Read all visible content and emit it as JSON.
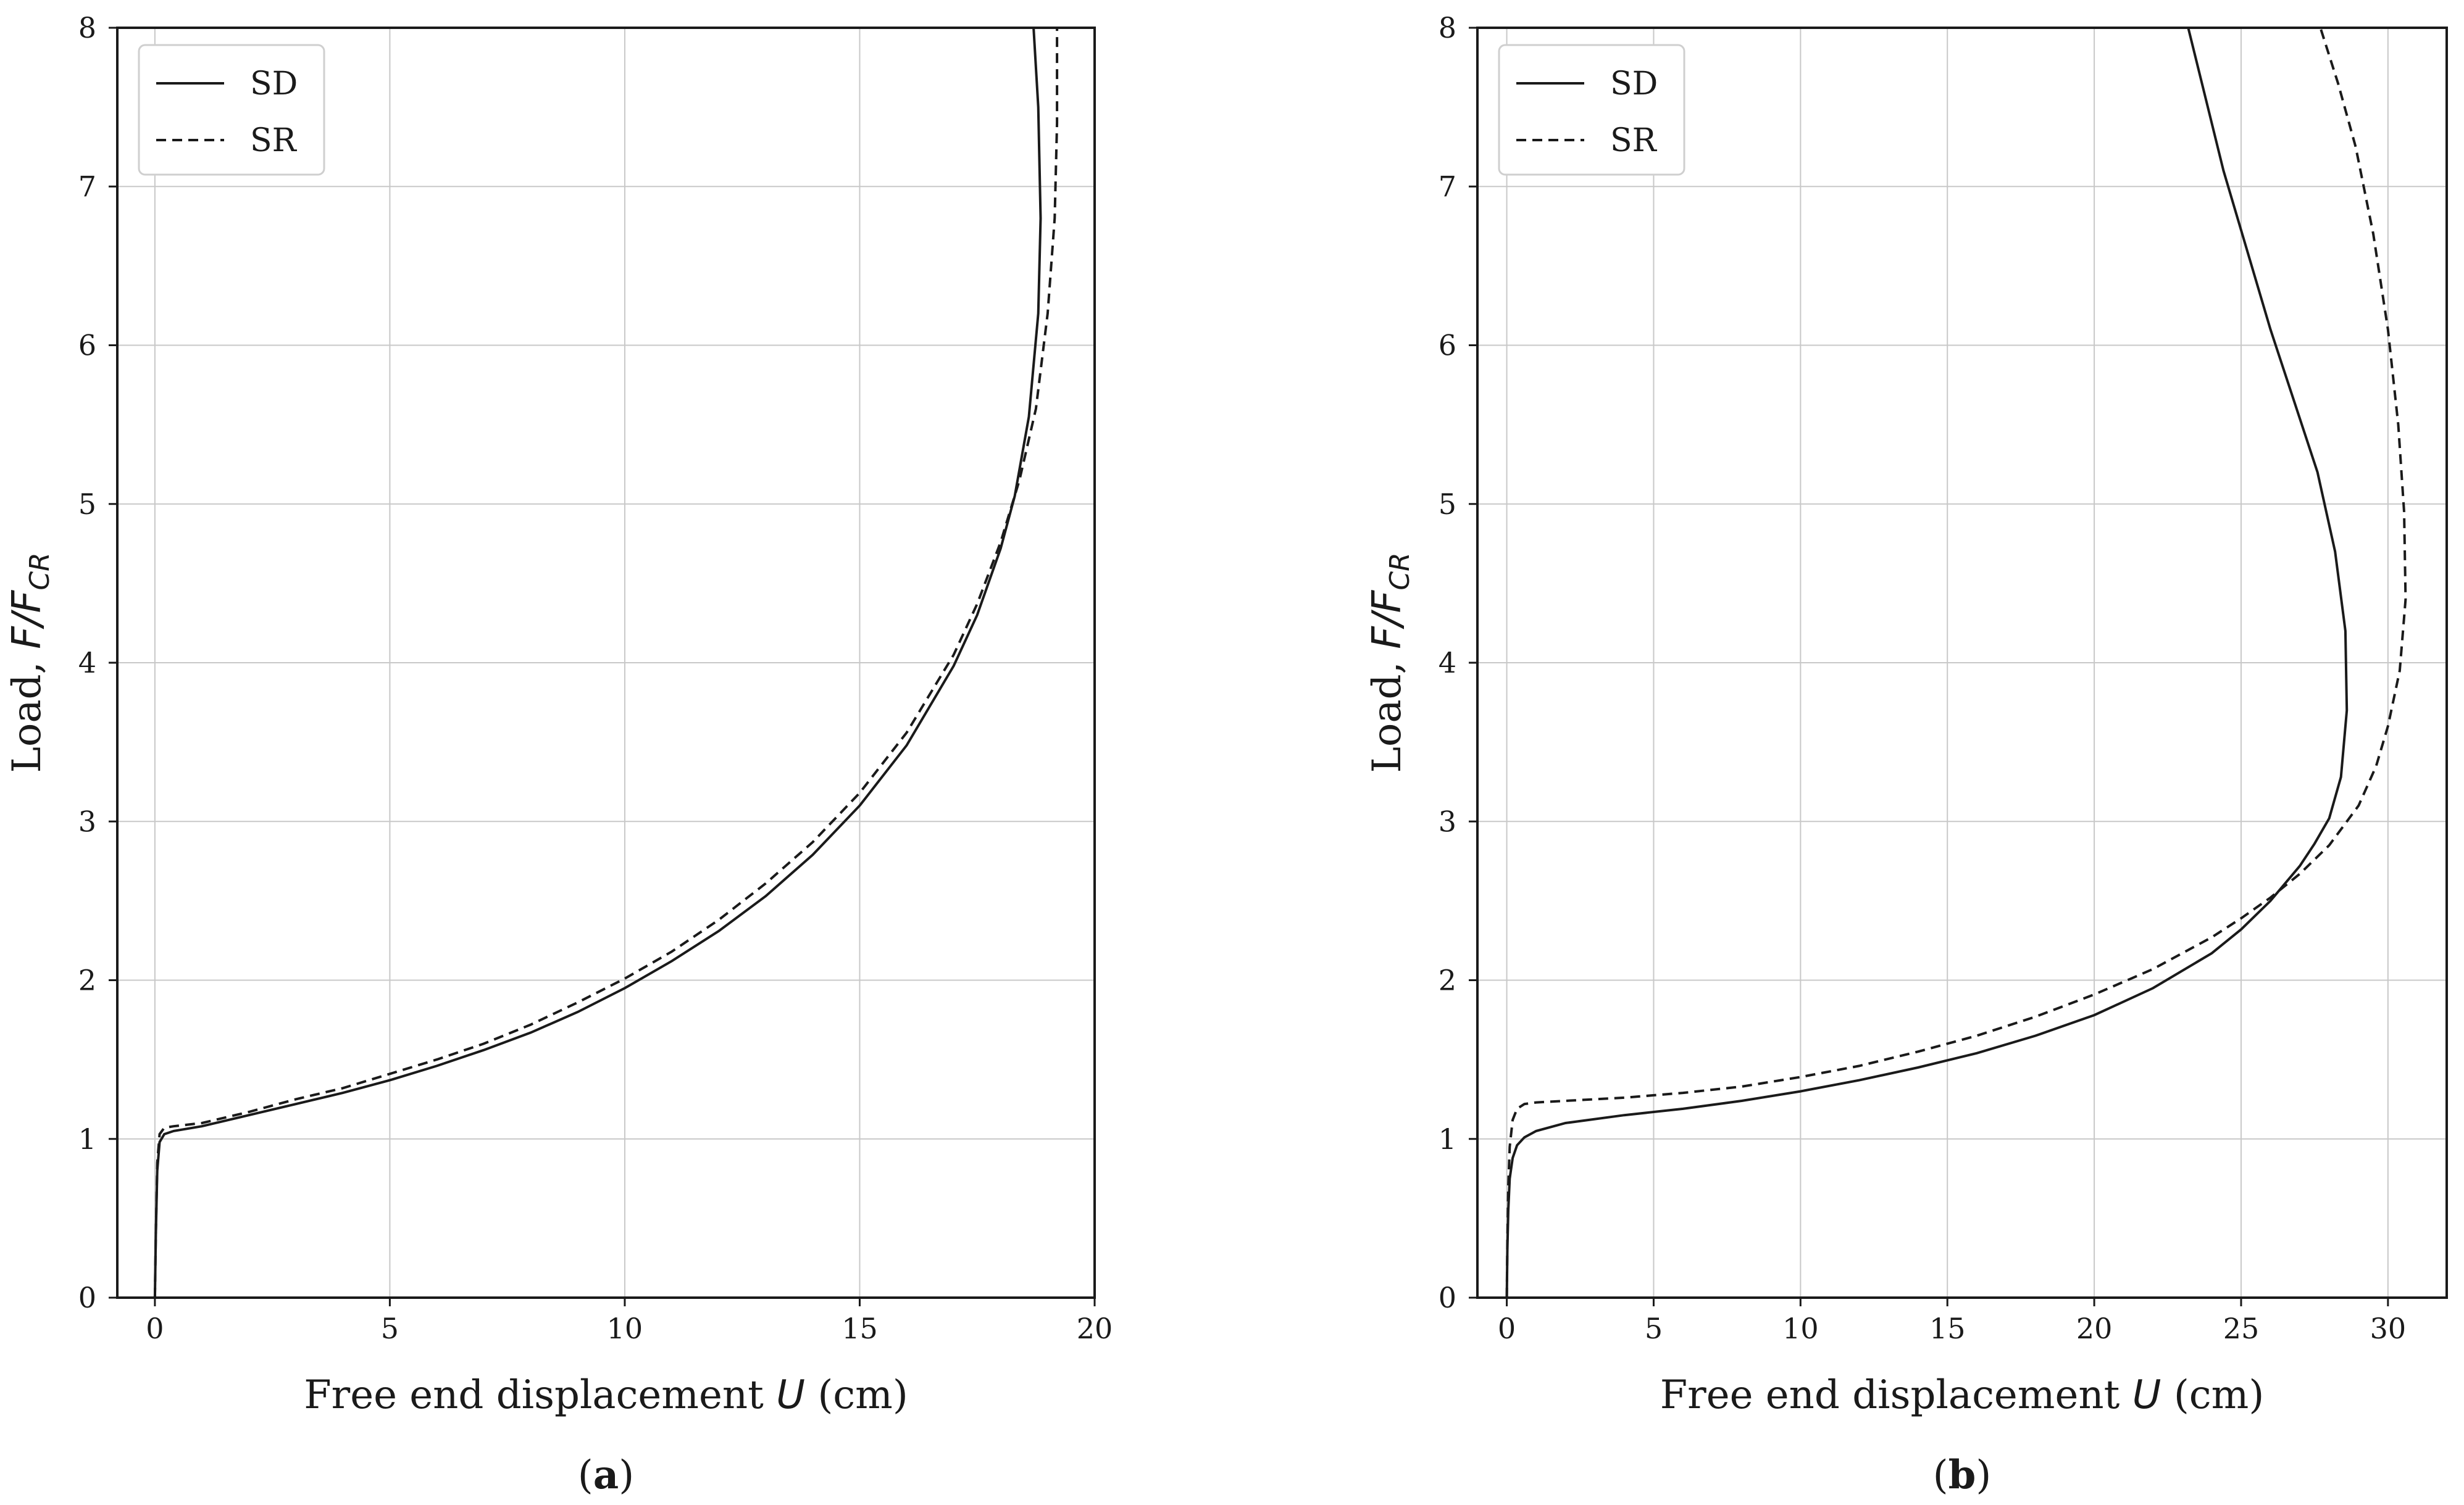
{
  "chart_data": [
    {
      "type": "line",
      "panel_label": "a",
      "xlabel": "Free end displacement U (cm)",
      "ylabel": "Load, F/F_CR",
      "xlim": [
        -0.8,
        20
      ],
      "ylim": [
        0,
        8
      ],
      "xticks": [
        0,
        5,
        10,
        15,
        20
      ],
      "yticks": [
        0,
        1,
        2,
        3,
        4,
        5,
        6,
        7,
        8
      ],
      "grid": true,
      "legend_position": "top-left",
      "series": [
        {
          "name": "SD",
          "style": "solid",
          "x": [
            0,
            0.02,
            0.05,
            0.1,
            0.2,
            0.4,
            1,
            2,
            3,
            4,
            5,
            6,
            7,
            8,
            9,
            10,
            11,
            12,
            13,
            14,
            15,
            16,
            17,
            17.5,
            18,
            18.3,
            18.6,
            18.8,
            18.85,
            18.8,
            18.7
          ],
          "y": [
            0,
            0.4,
            0.8,
            0.98,
            1.03,
            1.05,
            1.08,
            1.15,
            1.22,
            1.29,
            1.37,
            1.46,
            1.56,
            1.67,
            1.8,
            1.95,
            2.12,
            2.31,
            2.53,
            2.79,
            3.1,
            3.48,
            3.98,
            4.3,
            4.72,
            5.05,
            5.55,
            6.2,
            6.8,
            7.5,
            8.0
          ]
        },
        {
          "name": "SR",
          "style": "dashed",
          "x": [
            0,
            0.02,
            0.05,
            0.1,
            0.2,
            0.4,
            1,
            2,
            3,
            4,
            5,
            6,
            7,
            8,
            9,
            10,
            11,
            12,
            13,
            14,
            15,
            16,
            17,
            17.5,
            18,
            18.4,
            18.75,
            19.0,
            19.15,
            19.2,
            19.2
          ],
          "y": [
            0,
            0.4,
            0.85,
            1.03,
            1.07,
            1.08,
            1.1,
            1.17,
            1.25,
            1.32,
            1.41,
            1.5,
            1.6,
            1.72,
            1.86,
            2.01,
            2.18,
            2.38,
            2.61,
            2.87,
            3.18,
            3.56,
            4.05,
            4.37,
            4.76,
            5.15,
            5.6,
            6.2,
            6.8,
            7.4,
            8.0
          ]
        }
      ]
    },
    {
      "type": "line",
      "panel_label": "b",
      "xlabel": "Free end displacement U (cm)",
      "ylabel": "Load, F/F_CR",
      "xlim": [
        -1,
        32
      ],
      "ylim": [
        0,
        8
      ],
      "xticks": [
        0,
        5,
        10,
        15,
        20,
        25,
        30
      ],
      "yticks": [
        0,
        1,
        2,
        3,
        4,
        5,
        6,
        7,
        8
      ],
      "grid": true,
      "legend_position": "top-left",
      "series": [
        {
          "name": "SD",
          "style": "solid",
          "x": [
            0,
            0.02,
            0.05,
            0.1,
            0.2,
            0.35,
            0.6,
            1,
            2,
            4,
            6,
            8,
            10,
            12,
            14,
            16,
            18,
            20,
            22,
            24,
            25,
            26,
            27,
            27.5,
            28,
            28.4,
            28.6,
            28.55,
            28.2,
            27.6,
            26.8,
            26.0,
            25.2,
            24.4,
            23.8,
            23.2
          ],
          "y": [
            0,
            0.3,
            0.55,
            0.75,
            0.88,
            0.96,
            1.01,
            1.05,
            1.1,
            1.15,
            1.19,
            1.24,
            1.3,
            1.37,
            1.45,
            1.54,
            1.65,
            1.78,
            1.95,
            2.17,
            2.32,
            2.5,
            2.72,
            2.86,
            3.02,
            3.28,
            3.7,
            4.2,
            4.7,
            5.2,
            5.65,
            6.1,
            6.6,
            7.1,
            7.55,
            8.0
          ]
        },
        {
          "name": "SR",
          "style": "dashed",
          "x": [
            0,
            0.02,
            0.05,
            0.1,
            0.2,
            0.35,
            0.6,
            1,
            2,
            4,
            6,
            8,
            10,
            12,
            14,
            16,
            18,
            20,
            22,
            24,
            25,
            26,
            27,
            28,
            29,
            29.6,
            30.0,
            30.4,
            30.6,
            30.55,
            30.35,
            30.0,
            29.5,
            28.9,
            28.3,
            27.7
          ],
          "y": [
            0,
            0.35,
            0.7,
            0.95,
            1.12,
            1.19,
            1.22,
            1.23,
            1.24,
            1.26,
            1.29,
            1.33,
            1.39,
            1.46,
            1.55,
            1.65,
            1.77,
            1.91,
            2.07,
            2.27,
            2.39,
            2.52,
            2.67,
            2.85,
            3.1,
            3.35,
            3.6,
            3.95,
            4.4,
            4.95,
            5.5,
            6.1,
            6.7,
            7.25,
            7.65,
            8.0
          ]
        }
      ]
    }
  ]
}
